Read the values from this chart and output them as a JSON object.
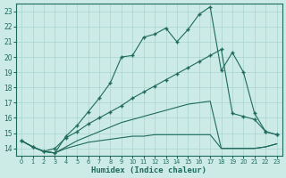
{
  "xlabel": "Humidex (Indice chaleur)",
  "xlim": [
    -0.5,
    23.5
  ],
  "ylim": [
    13.5,
    23.5
  ],
  "yticks": [
    14,
    15,
    16,
    17,
    18,
    19,
    20,
    21,
    22,
    23
  ],
  "xticks": [
    0,
    1,
    2,
    3,
    4,
    5,
    6,
    7,
    8,
    9,
    10,
    11,
    12,
    13,
    14,
    15,
    16,
    17,
    18,
    19,
    20,
    21,
    22,
    23
  ],
  "bg_color": "#cceae6",
  "grid_color": "#aad4ce",
  "line_color": "#1e6b5e",
  "line1_x": [
    0,
    1,
    2,
    3,
    4,
    5,
    6,
    7,
    8,
    9,
    10,
    11,
    12,
    13,
    14,
    15,
    16,
    17,
    18,
    19,
    20,
    21,
    22,
    23
  ],
  "line1_y": [
    14.5,
    14.1,
    13.8,
    13.7,
    14.8,
    15.5,
    16.4,
    17.3,
    18.3,
    20.0,
    20.1,
    21.3,
    21.5,
    21.9,
    21.0,
    21.8,
    22.8,
    23.3,
    19.1,
    20.3,
    19.0,
    16.3,
    15.1,
    14.9
  ],
  "line2_x": [
    0,
    1,
    2,
    3,
    4,
    5,
    6,
    7,
    8,
    9,
    10,
    11,
    12,
    13,
    14,
    15,
    16,
    17,
    18,
    19,
    20,
    21,
    22,
    23
  ],
  "line2_y": [
    14.5,
    14.1,
    13.8,
    14.0,
    14.7,
    15.1,
    15.6,
    16.0,
    16.4,
    16.8,
    17.3,
    17.7,
    18.1,
    18.5,
    18.9,
    19.3,
    19.7,
    20.1,
    20.5,
    16.3,
    16.1,
    15.9,
    15.1,
    14.9
  ],
  "line3_x": [
    0,
    1,
    2,
    3,
    4,
    5,
    6,
    7,
    8,
    9,
    10,
    11,
    12,
    13,
    14,
    15,
    16,
    17,
    18,
    19,
    20,
    21,
    22,
    23
  ],
  "line3_y": [
    14.5,
    14.1,
    13.8,
    13.7,
    14.1,
    14.5,
    14.8,
    15.1,
    15.4,
    15.7,
    15.9,
    16.1,
    16.3,
    16.5,
    16.7,
    16.9,
    17.0,
    17.1,
    14.0,
    14.0,
    14.0,
    14.0,
    14.1,
    14.3
  ],
  "line4_x": [
    0,
    1,
    2,
    3,
    4,
    5,
    6,
    7,
    8,
    9,
    10,
    11,
    12,
    13,
    14,
    15,
    16,
    17,
    18,
    19,
    20,
    21,
    22,
    23
  ],
  "line4_y": [
    14.5,
    14.1,
    13.8,
    13.7,
    14.0,
    14.2,
    14.4,
    14.5,
    14.6,
    14.7,
    14.8,
    14.8,
    14.9,
    14.9,
    14.9,
    14.9,
    14.9,
    14.9,
    14.0,
    14.0,
    14.0,
    14.0,
    14.1,
    14.3
  ]
}
